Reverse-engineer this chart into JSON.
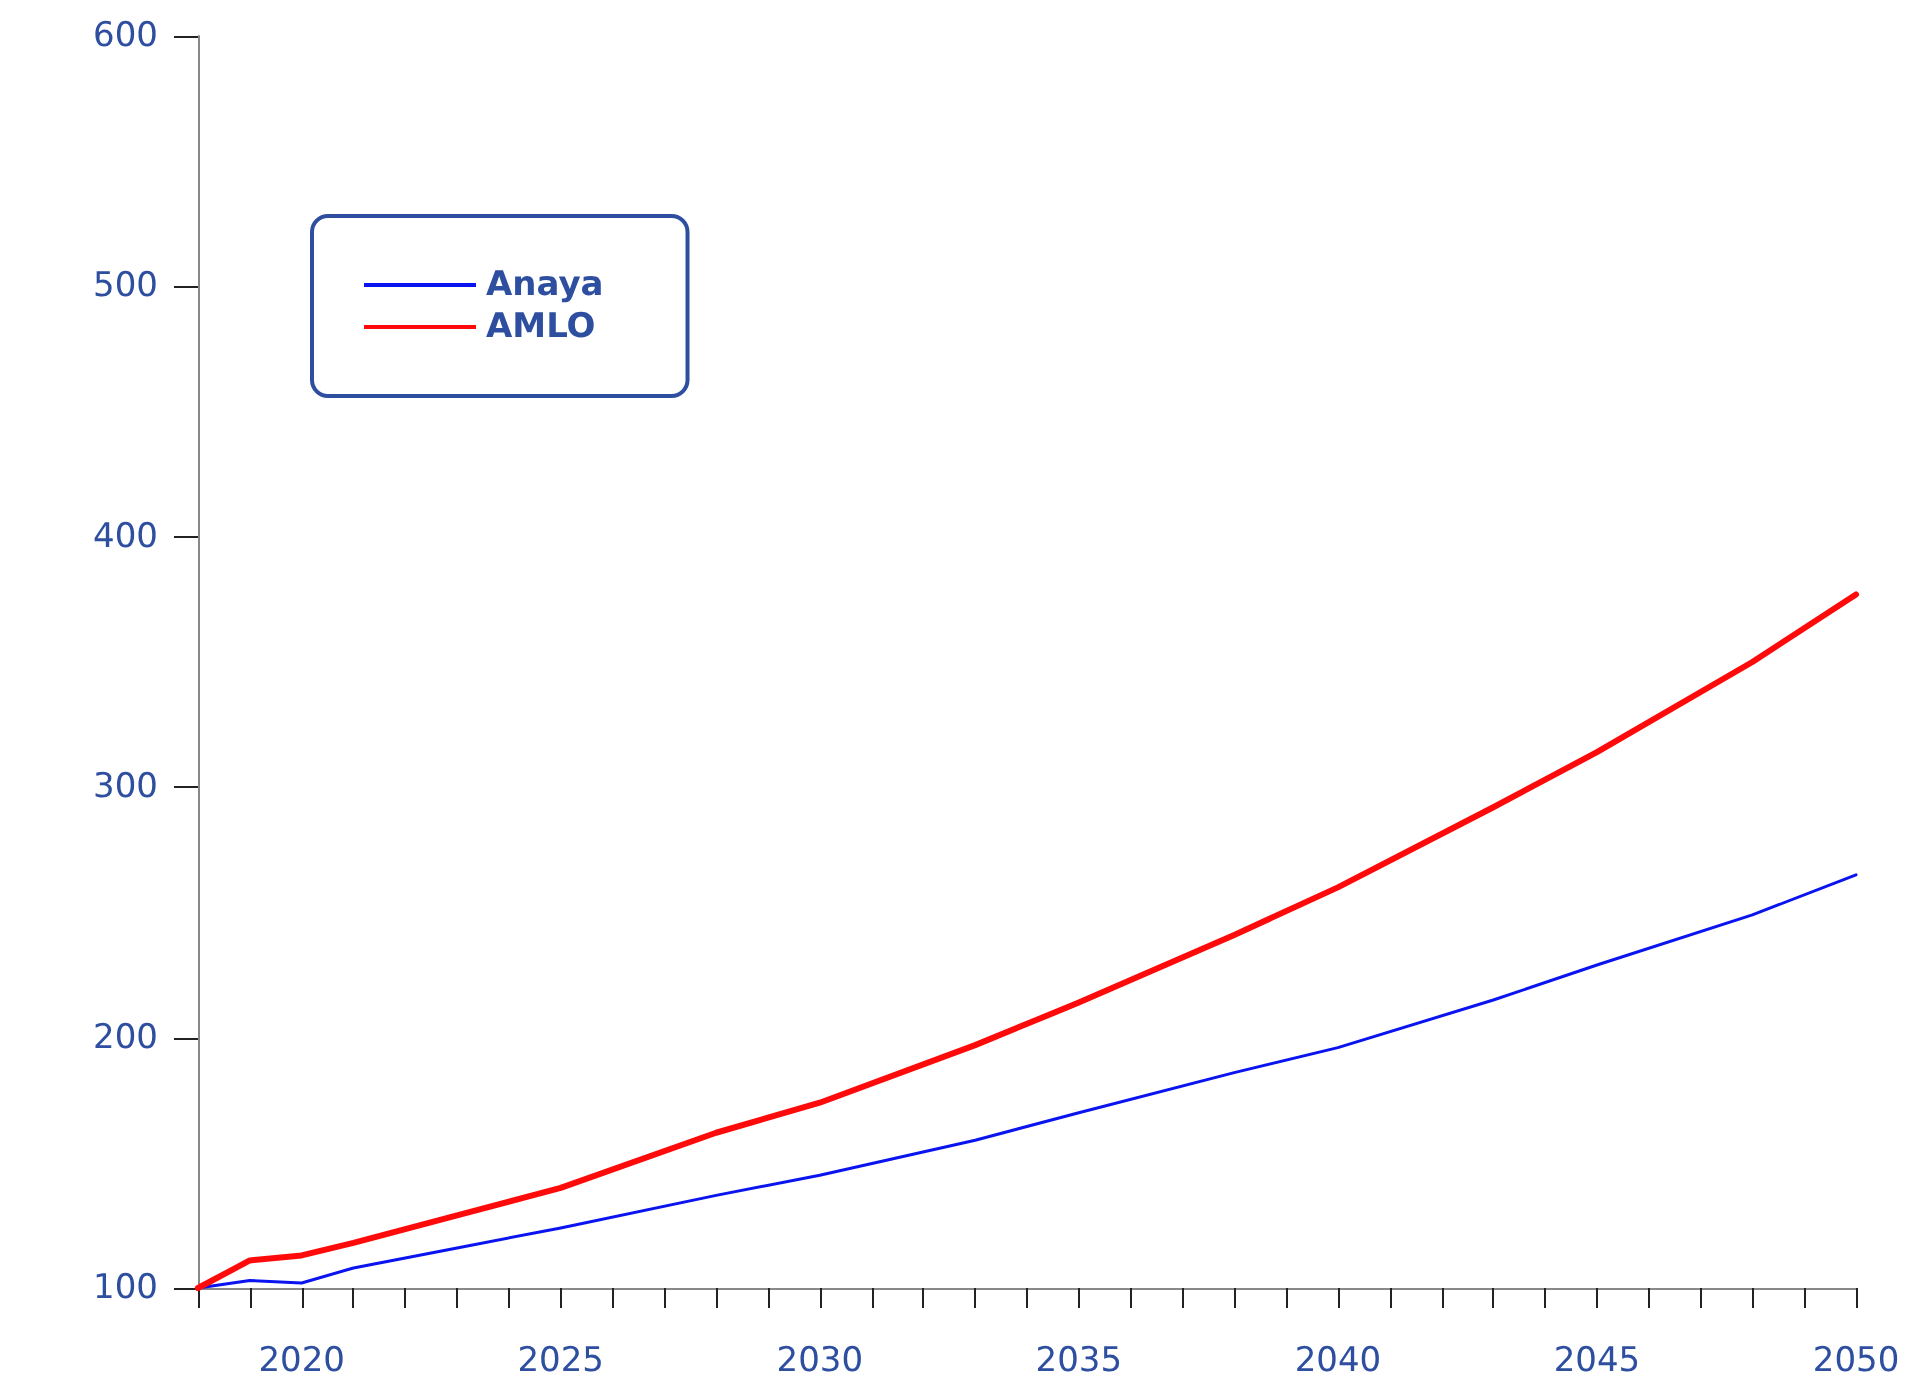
{
  "chart_data": {
    "type": "line",
    "series": [
      {
        "name": "Anaya",
        "color": "#0a14f0",
        "x": [
          2018,
          2019,
          2020,
          2021,
          2023,
          2025,
          2028,
          2030,
          2033,
          2035,
          2038,
          2040,
          2043,
          2045,
          2048,
          2050
        ],
        "values": [
          100,
          103,
          102,
          108,
          116,
          124,
          137,
          145,
          159,
          170,
          186,
          196,
          215,
          229,
          249,
          265
        ]
      },
      {
        "name": "AMLO",
        "color": "#ff0a0a",
        "x": [
          2018,
          2019,
          2020,
          2021,
          2023,
          2025,
          2028,
          2030,
          2033,
          2035,
          2038,
          2040,
          2043,
          2045,
          2048,
          2050
        ],
        "values": [
          100,
          111,
          113,
          118,
          129,
          140,
          162,
          174,
          197,
          214,
          241,
          260,
          292,
          314,
          350,
          377
        ]
      }
    ],
    "xlim": [
      2018,
      2050
    ],
    "xticks": [
      {
        "value": 2018,
        "label": null
      },
      {
        "value": 2019,
        "label": null
      },
      2020,
      {
        "value": 2021,
        "label": null
      },
      {
        "value": 2022,
        "label": null
      },
      {
        "value": 2023,
        "label": null
      },
      {
        "value": 2024,
        "label": null
      },
      2025,
      {
        "value": 2026,
        "label": null
      },
      {
        "value": 2027,
        "label": null
      },
      {
        "value": 2028,
        "label": null
      },
      {
        "value": 2029,
        "label": null
      },
      2030,
      {
        "value": 2031,
        "label": null
      },
      {
        "value": 2032,
        "label": null
      },
      {
        "value": 2033,
        "label": null
      },
      {
        "value": 2034,
        "label": null
      },
      2035,
      {
        "value": 2036,
        "label": null
      },
      {
        "value": 2037,
        "label": null
      },
      {
        "value": 2038,
        "label": null
      },
      {
        "value": 2039,
        "label": null
      },
      2040,
      {
        "value": 2041,
        "label": null
      },
      {
        "value": 2042,
        "label": null
      },
      {
        "value": 2043,
        "label": null
      },
      {
        "value": 2044,
        "label": null
      },
      2045,
      {
        "value": 2046,
        "label": null
      },
      {
        "value": 2047,
        "label": null
      },
      {
        "value": 2048,
        "label": null
      },
      {
        "value": 2049,
        "label": null
      },
      2050
    ],
    "ylim": [
      100,
      600
    ],
    "yticks": [
      100,
      200,
      300,
      400,
      500,
      600
    ],
    "grid": false,
    "legend": "top left",
    "marker": "none",
    "line_style": "solid"
  }
}
